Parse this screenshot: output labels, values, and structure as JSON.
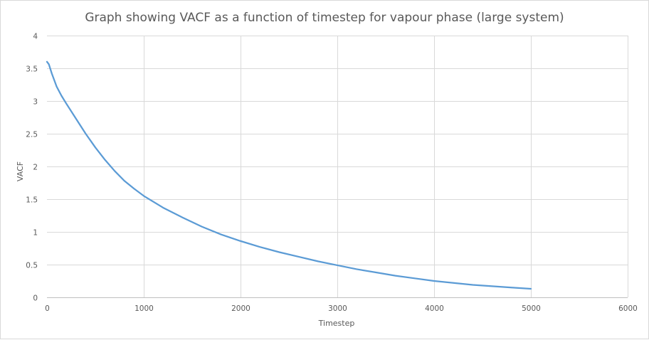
{
  "chart_data": {
    "type": "line",
    "title": "Graph showing VACF as a function of timestep for vapour phase (large system)",
    "xlabel": "Timestep",
    "ylabel": "VACF",
    "xlim": [
      0,
      6000
    ],
    "ylim": [
      0,
      4
    ],
    "xticks": [
      0,
      1000,
      2000,
      3000,
      4000,
      5000,
      6000
    ],
    "yticks": [
      0,
      0.5,
      1,
      1.5,
      2,
      2.5,
      3,
      3.5,
      4
    ],
    "grid": true,
    "legend": "none",
    "series": [
      {
        "color": "#5b9bd5",
        "x": [
          0,
          20,
          50,
          100,
          150,
          200,
          300,
          400,
          500,
          600,
          700,
          800,
          900,
          1000,
          1200,
          1400,
          1600,
          1800,
          2000,
          2200,
          2400,
          2600,
          2800,
          3000,
          3200,
          3400,
          3600,
          3800,
          4000,
          4200,
          4400,
          4600,
          4800,
          5000
        ],
        "y": [
          3.6,
          3.56,
          3.42,
          3.22,
          3.08,
          2.96,
          2.73,
          2.5,
          2.29,
          2.1,
          1.93,
          1.78,
          1.66,
          1.55,
          1.37,
          1.22,
          1.08,
          0.96,
          0.86,
          0.77,
          0.69,
          0.62,
          0.55,
          0.49,
          0.43,
          0.38,
          0.33,
          0.29,
          0.25,
          0.22,
          0.19,
          0.17,
          0.15,
          0.13
        ]
      }
    ]
  }
}
